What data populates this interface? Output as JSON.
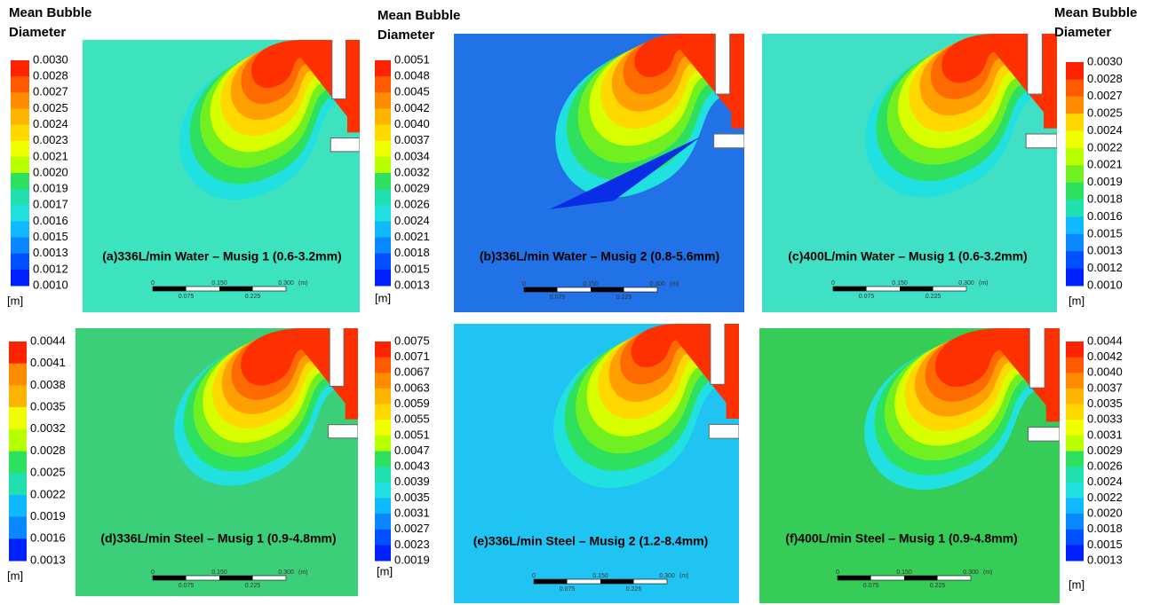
{
  "panels": [
    {
      "legend_title": [
        "Mean Bubble",
        "Diameter"
      ],
      "levels": [
        "0.0030",
        "0.0028",
        "0.0027",
        "0.0025",
        "0.0024",
        "0.0023",
        "0.0021",
        "0.0020",
        "0.0019",
        "0.0017",
        "0.0016",
        "0.0015",
        "0.0013",
        "0.0012",
        "0.0010"
      ],
      "unit": "[m]",
      "caption": "(a)336L/min Water – Musig 1 (0.6-3.2mm)",
      "scale_top": [
        "0",
        "0.150",
        "0.300",
        "(m)"
      ],
      "scale_bottom": [
        "0.075",
        "0.225"
      ]
    },
    {
      "legend_title": [
        "Mean Bubble",
        "Diameter"
      ],
      "levels": [
        "0.0051",
        "0.0048",
        "0.0045",
        "0.0042",
        "0.0040",
        "0.0037",
        "0.0034",
        "0.0032",
        "0.0029",
        "0.0026",
        "0.0024",
        "0.0021",
        "0.0018",
        "0.0015",
        "0.0013"
      ],
      "unit": "[m]",
      "caption": "(b)336L/min Water  – Musig 2 (0.8-5.6mm)",
      "scale_top": [
        "0",
        "0.150",
        "0.300",
        "(m)"
      ],
      "scale_bottom": [
        "0.075",
        "0.225"
      ]
    },
    {
      "legend_title": [
        "Mean Bubble",
        "Diameter"
      ],
      "levels": [
        "0.0030",
        "0.0028",
        "0.0027",
        "0.0025",
        "0.0024",
        "0.0022",
        "0.0021",
        "0.0019",
        "0.0018",
        "0.0016",
        "0.0015",
        "0.0013",
        "0.0012",
        "0.0010"
      ],
      "unit": "[m]",
      "caption": "(c)400L/min Water – Musig 1 (0.6-3.2mm)",
      "scale_top": [
        "0",
        "0.150",
        "0.300",
        "(m)"
      ],
      "scale_bottom": [
        "0.075",
        "0.225"
      ]
    },
    {
      "levels": [
        "0.0044",
        "0.0041",
        "0.0038",
        "0.0035",
        "0.0032",
        "0.0028",
        "0.0025",
        "0.0022",
        "0.0019",
        "0.0016",
        "0.0013"
      ],
      "unit": "[m]",
      "caption": "(d)336L/min Steel – Musig 1 (0.9-4.8mm)",
      "scale_top": [
        "0",
        "0.150",
        "0.300",
        "(m)"
      ],
      "scale_bottom": [
        "0.075",
        "0.225"
      ]
    },
    {
      "levels": [
        "0.0075",
        "0.0071",
        "0.0067",
        "0.0063",
        "0.0059",
        "0.0055",
        "0.0051",
        "0.0047",
        "0.0043",
        "0.0039",
        "0.0035",
        "0.0031",
        "0.0027",
        "0.0023",
        "0.0019"
      ],
      "unit": "[m]",
      "caption": "(e)336L/min Steel – Musig 2 (1.2-8.4mm)",
      "scale_top": [
        "0",
        "0.150",
        "0.300",
        "(m)"
      ],
      "scale_bottom": [
        "0.075",
        "0.225"
      ]
    },
    {
      "levels": [
        "0.0044",
        "0.0042",
        "0.0040",
        "0.0037",
        "0.0035",
        "0.0033",
        "0.0031",
        "0.0029",
        "0.0026",
        "0.0024",
        "0.0022",
        "0.0020",
        "0.0018",
        "0.0015",
        "0.0013"
      ],
      "unit": "[m]",
      "caption": "(f)400L/min Steel – Musig 1 (0.9-4.8mm)",
      "scale_top": [
        "0",
        "0.150",
        "0.300",
        "(m)"
      ],
      "scale_bottom": [
        "0.075",
        "0.225"
      ]
    }
  ]
}
